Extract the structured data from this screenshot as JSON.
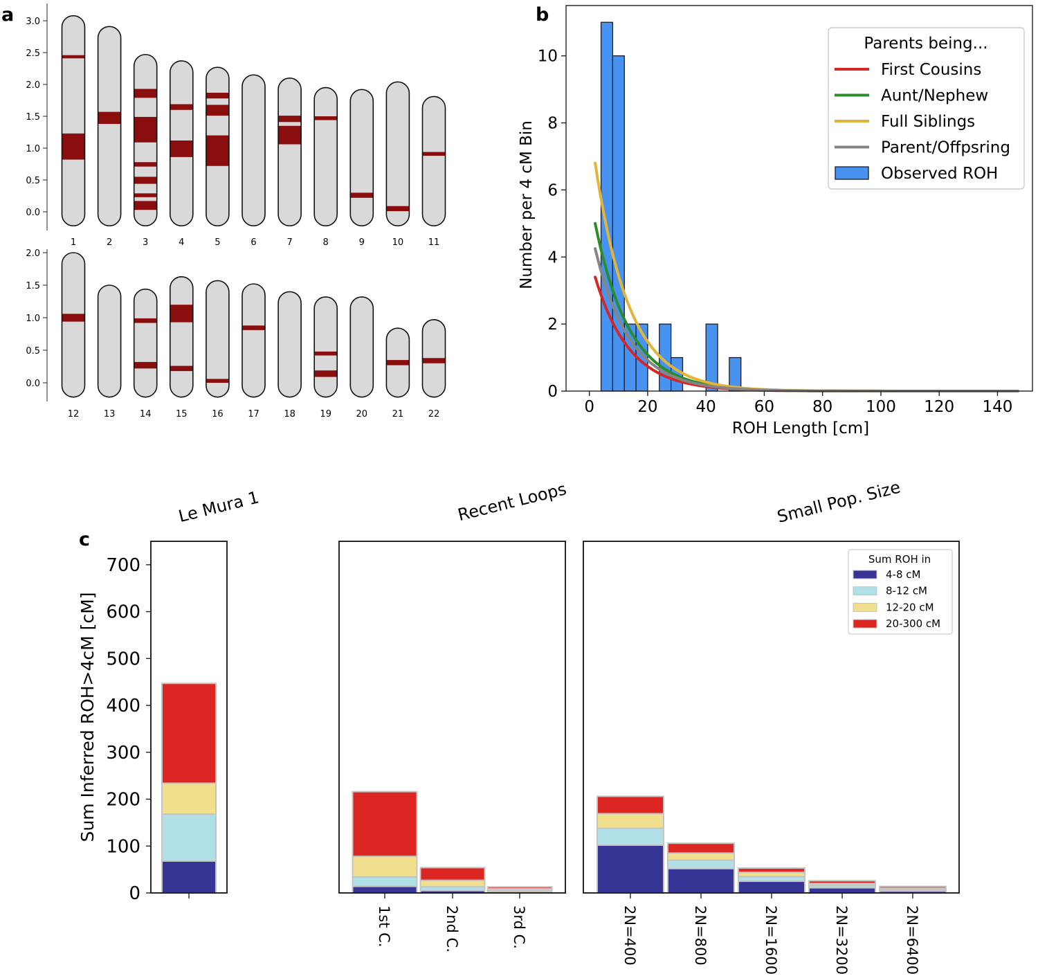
{
  "panels": {
    "a": "a",
    "b": "b",
    "c": "c"
  },
  "chart_data": [
    {
      "panel": "a",
      "type": "ideogram",
      "y_ticks_top": [
        "3.0",
        "2.5",
        "2.0",
        "1.5",
        "1.0",
        "0.5",
        "0.0"
      ],
      "y_ticks_bottom": [
        "2.0",
        "1.5",
        "1.0",
        "0.5",
        "0.0"
      ],
      "colors": {
        "chromosome": "#d9d9d9",
        "roh": "#8b0e0e",
        "outline": "#111111"
      },
      "chromosomes": [
        {
          "label": "1",
          "row": 0,
          "top": 3.08,
          "bottom": -0.22,
          "roh": [
            [
              2.41,
              2.46
            ],
            [
              0.82,
              1.23
            ]
          ]
        },
        {
          "label": "2",
          "row": 0,
          "top": 2.91,
          "bottom": -0.22,
          "roh": [
            [
              1.38,
              1.57
            ]
          ]
        },
        {
          "label": "3",
          "row": 0,
          "top": 2.47,
          "bottom": -0.22,
          "roh": [
            [
              1.79,
              1.93
            ],
            [
              1.09,
              1.49
            ],
            [
              0.71,
              0.78
            ],
            [
              0.44,
              0.55
            ],
            [
              0.23,
              0.29
            ],
            [
              0.03,
              0.17
            ]
          ]
        },
        {
          "label": "4",
          "row": 0,
          "top": 2.37,
          "bottom": -0.22,
          "roh": [
            [
              1.6,
              1.69
            ],
            [
              0.86,
              1.12
            ]
          ]
        },
        {
          "label": "5",
          "row": 0,
          "top": 2.27,
          "bottom": -0.22,
          "roh": [
            [
              1.78,
              1.87
            ],
            [
              1.51,
              1.68
            ],
            [
              0.72,
              1.2
            ]
          ]
        },
        {
          "label": "6",
          "row": 0,
          "top": 2.15,
          "bottom": -0.22,
          "roh": []
        },
        {
          "label": "7",
          "row": 0,
          "top": 2.1,
          "bottom": -0.22,
          "roh": [
            [
              1.41,
              1.51
            ],
            [
              1.06,
              1.35
            ]
          ]
        },
        {
          "label": "8",
          "row": 0,
          "top": 1.95,
          "bottom": -0.22,
          "roh": [
            [
              1.44,
              1.5
            ]
          ]
        },
        {
          "label": "9",
          "row": 0,
          "top": 1.92,
          "bottom": -0.22,
          "roh": [
            [
              0.22,
              0.3
            ]
          ]
        },
        {
          "label": "10",
          "row": 0,
          "top": 2.04,
          "bottom": -0.22,
          "roh": [
            [
              0.01,
              0.09
            ]
          ]
        },
        {
          "label": "11",
          "row": 0,
          "top": 1.81,
          "bottom": -0.22,
          "roh": [
            [
              0.88,
              0.94
            ]
          ]
        },
        {
          "label": "12",
          "row": 1,
          "top": 2.0,
          "bottom": -0.22,
          "roh": [
            [
              0.94,
              1.06
            ]
          ]
        },
        {
          "label": "13",
          "row": 1,
          "top": 1.5,
          "bottom": -0.22,
          "roh": []
        },
        {
          "label": "14",
          "row": 1,
          "top": 1.44,
          "bottom": -0.22,
          "roh": [
            [
              0.92,
              0.99
            ],
            [
              0.22,
              0.32
            ]
          ]
        },
        {
          "label": "15",
          "row": 1,
          "top": 1.63,
          "bottom": -0.22,
          "roh": [
            [
              0.93,
              1.2
            ],
            [
              0.18,
              0.26
            ]
          ]
        },
        {
          "label": "16",
          "row": 1,
          "top": 1.57,
          "bottom": -0.22,
          "roh": [
            [
              0.0,
              0.06
            ]
          ]
        },
        {
          "label": "17",
          "row": 1,
          "top": 1.52,
          "bottom": -0.22,
          "roh": [
            [
              0.81,
              0.88
            ]
          ]
        },
        {
          "label": "18",
          "row": 1,
          "top": 1.4,
          "bottom": -0.22,
          "roh": []
        },
        {
          "label": "19",
          "row": 1,
          "top": 1.32,
          "bottom": -0.22,
          "roh": [
            [
              0.42,
              0.48
            ],
            [
              0.09,
              0.19
            ]
          ]
        },
        {
          "label": "20",
          "row": 1,
          "top": 1.32,
          "bottom": -0.22,
          "roh": []
        },
        {
          "label": "21",
          "row": 1,
          "top": 0.84,
          "bottom": -0.22,
          "roh": [
            [
              0.27,
              0.35
            ]
          ]
        },
        {
          "label": "22",
          "row": 1,
          "top": 0.97,
          "bottom": -0.22,
          "roh": [
            [
              0.3,
              0.38
            ]
          ]
        }
      ]
    },
    {
      "panel": "b",
      "type": "bar",
      "xlabel": "ROH Length [cm]",
      "ylabel": "Number per 4 cM Bin",
      "xlim": [
        -8,
        152
      ],
      "ylim": [
        0,
        11.5
      ],
      "x_ticks": [
        "0",
        "20",
        "40",
        "60",
        "80",
        "100",
        "120",
        "140"
      ],
      "y_ticks": [
        "0",
        "2",
        "4",
        "6",
        "8",
        "10"
      ],
      "histogram": {
        "bin_starts": [
          4,
          8,
          12,
          16,
          20,
          24,
          28,
          32,
          36,
          40,
          44,
          48
        ],
        "bin_width": 4,
        "counts": [
          11,
          10,
          2,
          2,
          0,
          2,
          1,
          0,
          0,
          2,
          0,
          1
        ],
        "color": "#4893ef"
      },
      "curves": [
        {
          "name": "First Cousins",
          "color": "#d62728",
          "y0": 3.4
        },
        {
          "name": "Aunt/Nephew",
          "color": "#2a8c2a",
          "y0": 5.0
        },
        {
          "name": "Full Siblings",
          "color": "#e3b43a",
          "y0": 6.8
        },
        {
          "name": "Parent/Offpsring",
          "color": "#858585",
          "y0": 4.25
        }
      ],
      "curve_x_range": [
        2,
        147
      ],
      "legend": {
        "title": "Parents being...",
        "entries": [
          "First Cousins",
          "Aunt/Nephew",
          "Full Siblings",
          "Parent/Offpsring",
          "Observed ROH"
        ],
        "position": "top-right"
      }
    },
    {
      "panel": "c",
      "type": "bar",
      "stacked": true,
      "ylabel": "Sum Inferred ROH>4cM [cM]",
      "ylim": [
        0,
        750
      ],
      "y_ticks": [
        "0",
        "100",
        "200",
        "300",
        "400",
        "500",
        "600",
        "700"
      ],
      "segment_names": [
        "4-8 cM",
        "8-12 cM",
        "12-20 cM",
        "20-300 cM"
      ],
      "segment_colors": [
        "#363596",
        "#b0e0e6",
        "#f0e08d",
        "#dc2622"
      ],
      "groups": [
        {
          "title": "Le Mura 1",
          "bars": [
            {
              "label": "",
              "values": [
                68,
                100,
                66,
                213
              ]
            }
          ]
        },
        {
          "title": "Recent Loops",
          "bars": [
            {
              "label": "1st C.",
              "values": [
                14,
                20,
                44,
                138
              ]
            },
            {
              "label": "2nd C.",
              "values": [
                5,
                8,
                14,
                27
              ]
            },
            {
              "label": "3rd C.",
              "values": [
                2,
                3,
                4,
                4
              ]
            }
          ]
        },
        {
          "title": "Small Pop. Size",
          "bars": [
            {
              "label": "2N=400",
              "values": [
                102,
                36,
                31,
                37
              ]
            },
            {
              "label": "2N=800",
              "values": [
                52,
                18,
                15,
                21
              ]
            },
            {
              "label": "2N=1600",
              "values": [
                25,
                10,
                9,
                9
              ]
            },
            {
              "label": "2N=3200",
              "values": [
                11,
                5,
                4,
                6
              ]
            },
            {
              "label": "2N=6400",
              "values": [
                4,
                3,
                3,
                4
              ]
            }
          ]
        }
      ],
      "legend": {
        "title": "Sum ROH in",
        "entries": [
          "4-8 cM",
          "8-12 cM",
          "12-20 cM",
          "20-300 cM"
        ],
        "position": "top-right"
      }
    }
  ]
}
